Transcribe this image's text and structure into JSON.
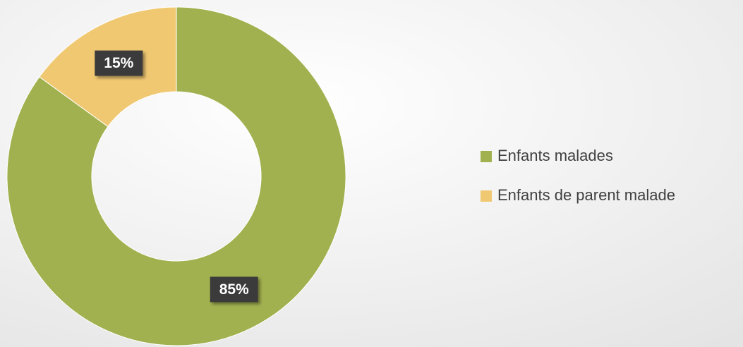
{
  "chart_data": {
    "type": "donut",
    "categories": [
      "Enfants malades",
      "Enfants de parent malade"
    ],
    "values": [
      85,
      15
    ],
    "value_labels": [
      "85%",
      "15%"
    ],
    "colors": [
      "#a2b14f",
      "#f0c872"
    ],
    "legend": "right"
  }
}
